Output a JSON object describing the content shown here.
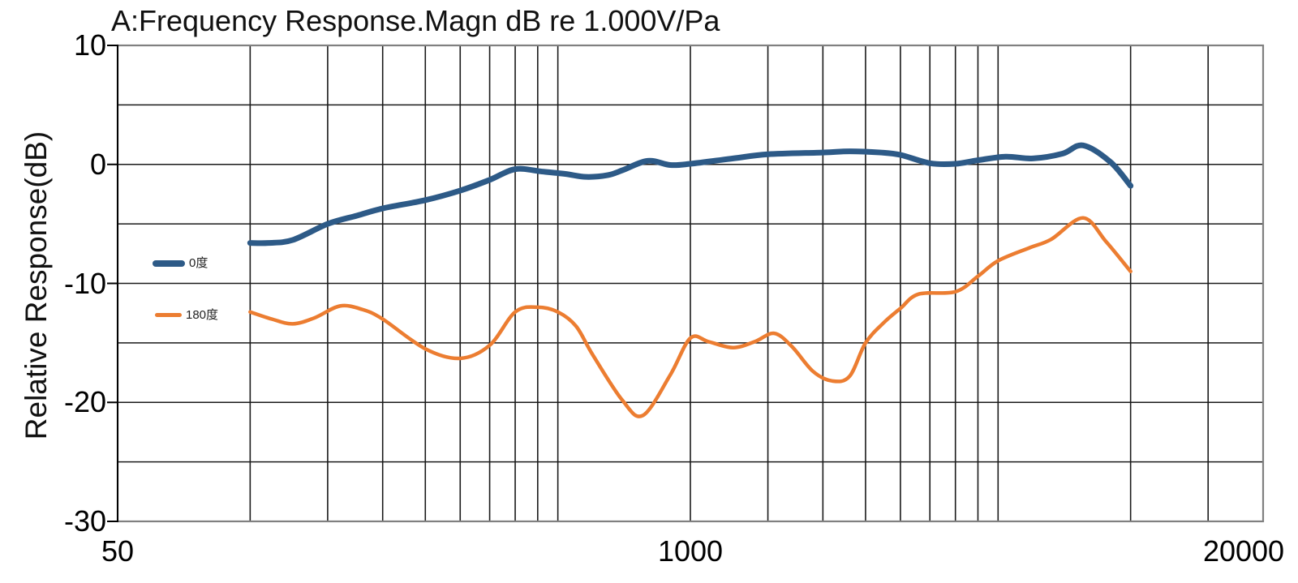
{
  "title": "A:Frequency Response.Magn dB re 1.000V/Pa",
  "y_axis_label": "Relative Response(dB)",
  "colors": {
    "background": "#ffffff",
    "grid": "#1a1a1a",
    "frame": "#808080",
    "axis": "#000000",
    "text": "#111111",
    "series_0deg": "#2D5A87",
    "series_180deg": "#EC7D31"
  },
  "chart_data": {
    "type": "line",
    "title": "A:Frequency Response.Magn dB re 1.000V/Pa",
    "xlabel": "",
    "ylabel": "Relative Response(dB)",
    "x_scale": "log",
    "x_range": [
      50,
      20000
    ],
    "y_range": [
      -30,
      10
    ],
    "grid": "on",
    "legend_position": "inside-left",
    "x_ticks": [
      {
        "value": 50,
        "label": "50"
      },
      {
        "value": 1000,
        "label": "1000"
      },
      {
        "value": 20000,
        "label": "20000"
      }
    ],
    "y_ticks": [
      {
        "value": 10,
        "label": "10"
      },
      {
        "value": 0,
        "label": "0"
      },
      {
        "value": -10,
        "label": "-10"
      },
      {
        "value": -20,
        "label": "-20"
      },
      {
        "value": -30,
        "label": "-30"
      }
    ],
    "x_gridlines": [
      50,
      100,
      150,
      200,
      250,
      300,
      350,
      400,
      450,
      500,
      1000,
      1500,
      2000,
      2500,
      3000,
      3500,
      4000,
      4500,
      5000,
      10000,
      15000,
      20000
    ],
    "y_gridlines": [
      10,
      5,
      0,
      -5,
      -10,
      -15,
      -20,
      -25,
      -30
    ],
    "series": [
      {
        "name": "0度",
        "color": "#2D5A87",
        "stroke_width": 7,
        "points": [
          [
            100,
            -6.6
          ],
          [
            110,
            -6.6
          ],
          [
            125,
            -6.35
          ],
          [
            150,
            -5.0
          ],
          [
            175,
            -4.3
          ],
          [
            200,
            -3.7
          ],
          [
            250,
            -3.0
          ],
          [
            300,
            -2.2
          ],
          [
            350,
            -1.3
          ],
          [
            400,
            -0.4
          ],
          [
            460,
            -0.6
          ],
          [
            520,
            -0.8
          ],
          [
            580,
            -1.05
          ],
          [
            650,
            -0.9
          ],
          [
            700,
            -0.5
          ],
          [
            800,
            0.3
          ],
          [
            900,
            -0.05
          ],
          [
            1000,
            0.05
          ],
          [
            1250,
            0.5
          ],
          [
            1500,
            0.85
          ],
          [
            2000,
            1.0
          ],
          [
            2300,
            1.1
          ],
          [
            2700,
            1.0
          ],
          [
            3000,
            0.8
          ],
          [
            3500,
            0.1
          ],
          [
            4000,
            0.05
          ],
          [
            4500,
            0.35
          ],
          [
            5200,
            0.65
          ],
          [
            6000,
            0.5
          ],
          [
            7000,
            0.9
          ],
          [
            7800,
            1.6
          ],
          [
            9000,
            0.2
          ],
          [
            10000,
            -1.8
          ]
        ]
      },
      {
        "name": "180度",
        "color": "#EC7D31",
        "stroke_width": 4.5,
        "points": [
          [
            100,
            -12.4
          ],
          [
            112,
            -13.0
          ],
          [
            125,
            -13.4
          ],
          [
            140,
            -12.9
          ],
          [
            160,
            -11.9
          ],
          [
            180,
            -12.2
          ],
          [
            200,
            -13.0
          ],
          [
            250,
            -15.5
          ],
          [
            300,
            -16.3
          ],
          [
            350,
            -15.2
          ],
          [
            400,
            -12.4
          ],
          [
            450,
            -12.0
          ],
          [
            500,
            -12.4
          ],
          [
            550,
            -13.6
          ],
          [
            600,
            -16.0
          ],
          [
            700,
            -19.8
          ],
          [
            780,
            -21.1
          ],
          [
            900,
            -17.7
          ],
          [
            1000,
            -14.6
          ],
          [
            1100,
            -14.9
          ],
          [
            1250,
            -15.4
          ],
          [
            1400,
            -14.9
          ],
          [
            1550,
            -14.2
          ],
          [
            1700,
            -15.3
          ],
          [
            1900,
            -17.4
          ],
          [
            2100,
            -18.2
          ],
          [
            2300,
            -17.8
          ],
          [
            2500,
            -15.0
          ],
          [
            2750,
            -13.3
          ],
          [
            3000,
            -12.1
          ],
          [
            3300,
            -10.9
          ],
          [
            4000,
            -10.7
          ],
          [
            4500,
            -9.4
          ],
          [
            5000,
            -8.1
          ],
          [
            5900,
            -7.0
          ],
          [
            6600,
            -6.3
          ],
          [
            7800,
            -4.5
          ],
          [
            8800,
            -6.5
          ],
          [
            10000,
            -9.0
          ]
        ]
      }
    ]
  }
}
